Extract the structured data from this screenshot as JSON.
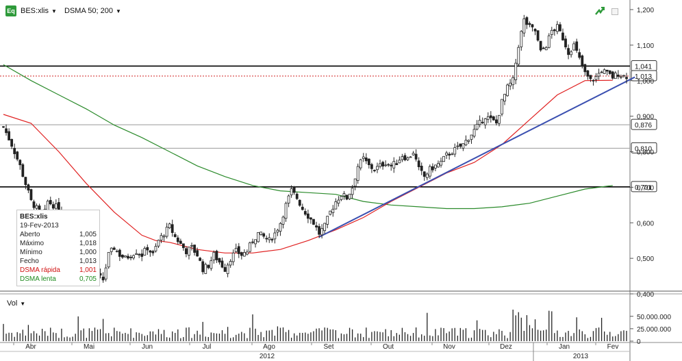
{
  "toolbar": {
    "app_icon_label": "Eq",
    "symbol": "BES:xlis",
    "indicator": "DSMA 50; 200",
    "trend_icon": "trend-arrow-icon",
    "window_icon": "restore-window-icon"
  },
  "volume_panel": {
    "label": "Vol"
  },
  "infobox": {
    "title": "BES:xlis",
    "date": "19-Fev-2013",
    "rows": [
      {
        "label": "Aberto",
        "value": "1,005"
      },
      {
        "label": "Máximo",
        "value": "1,018"
      },
      {
        "label": "Mínimo",
        "value": "1,000"
      },
      {
        "label": "Fecho",
        "value": "1,013"
      },
      {
        "label": "DSMA rápida",
        "value": "1,001"
      },
      {
        "label": "DSMA lenta",
        "value": "0,705"
      }
    ]
  },
  "colors": {
    "up": "#ffffff",
    "down": "#222222",
    "fast_ma": "#e02020",
    "slow_ma": "#2a8a2a",
    "trendline": "#3a4fb0",
    "grid": "#cfcfcf",
    "hline_strong": "#000000",
    "hline_weak": "#999999",
    "ref_dotted": "#d02020"
  },
  "chart_data": {
    "type": "candlestick",
    "price_axis": {
      "min": 0.4,
      "max": 1.2,
      "ticks": [
        "1,200",
        "1,100",
        "1,000",
        "0,900",
        "0,800",
        "0,700",
        "0,600",
        "0,500",
        "0,400"
      ],
      "tick_values": [
        1.2,
        1.1,
        1.0,
        0.9,
        0.8,
        0.7,
        0.6,
        0.5,
        0.4
      ]
    },
    "volume_axis": {
      "min": 0,
      "max": 80000000,
      "ticks": [
        "50.000.000",
        "25.000.000",
        "0"
      ],
      "tick_values": [
        50000000,
        25000000,
        0
      ]
    },
    "months": [
      "Abr",
      "Mai",
      "Jun",
      "Jul",
      "Ago",
      "Set",
      "Out",
      "Nov",
      "Dez",
      "Jan",
      "Fev"
    ],
    "years": [
      "2012",
      "2013"
    ],
    "level_labels": [
      {
        "label": "1,041",
        "value": 1.041,
        "style": "strong"
      },
      {
        "label": "1,013",
        "value": 1.013,
        "style": "dotted"
      },
      {
        "label": "0,876",
        "value": 0.876,
        "style": "weak"
      },
      {
        "label": "0,810",
        "value": 0.81,
        "style": "weak"
      },
      {
        "label": "0,701",
        "value": 0.701,
        "style": "strong"
      }
    ],
    "trendline": {
      "from_day_index": 114,
      "from_value": 0.56,
      "to_day_index": 228,
      "to_value": 1.01
    },
    "close_anchors": [
      [
        0,
        0.87
      ],
      [
        3,
        0.82
      ],
      [
        6,
        0.76
      ],
      [
        8,
        0.71
      ],
      [
        10,
        0.66
      ],
      [
        12,
        0.64
      ],
      [
        14,
        0.6
      ],
      [
        16,
        0.66
      ],
      [
        18,
        0.65
      ],
      [
        20,
        0.64
      ],
      [
        22,
        0.62
      ],
      [
        24,
        0.55
      ],
      [
        26,
        0.5
      ],
      [
        28,
        0.49
      ],
      [
        30,
        0.5
      ],
      [
        32,
        0.48
      ],
      [
        34,
        0.45
      ],
      [
        36,
        0.44
      ],
      [
        38,
        0.51
      ],
      [
        40,
        0.53
      ],
      [
        42,
        0.51
      ],
      [
        44,
        0.5
      ],
      [
        46,
        0.51
      ],
      [
        48,
        0.52
      ],
      [
        50,
        0.51
      ],
      [
        52,
        0.53
      ],
      [
        54,
        0.51
      ],
      [
        56,
        0.55
      ],
      [
        58,
        0.57
      ],
      [
        60,
        0.59
      ],
      [
        62,
        0.56
      ],
      [
        64,
        0.54
      ],
      [
        66,
        0.52
      ],
      [
        68,
        0.53
      ],
      [
        70,
        0.51
      ],
      [
        72,
        0.47
      ],
      [
        74,
        0.48
      ],
      [
        76,
        0.51
      ],
      [
        78,
        0.49
      ],
      [
        80,
        0.47
      ],
      [
        82,
        0.5
      ],
      [
        84,
        0.52
      ],
      [
        86,
        0.51
      ],
      [
        88,
        0.52
      ],
      [
        90,
        0.55
      ],
      [
        92,
        0.57
      ],
      [
        94,
        0.56
      ],
      [
        96,
        0.55
      ],
      [
        98,
        0.57
      ],
      [
        100,
        0.6
      ],
      [
        102,
        0.65
      ],
      [
        104,
        0.69
      ],
      [
        106,
        0.67
      ],
      [
        108,
        0.64
      ],
      [
        110,
        0.62
      ],
      [
        112,
        0.6
      ],
      [
        114,
        0.57
      ],
      [
        116,
        0.59
      ],
      [
        118,
        0.63
      ],
      [
        120,
        0.66
      ],
      [
        122,
        0.68
      ],
      [
        124,
        0.67
      ],
      [
        126,
        0.7
      ],
      [
        128,
        0.76
      ],
      [
        130,
        0.78
      ],
      [
        132,
        0.76
      ],
      [
        134,
        0.75
      ],
      [
        136,
        0.76
      ],
      [
        138,
        0.77
      ],
      [
        140,
        0.76
      ],
      [
        142,
        0.77
      ],
      [
        144,
        0.79
      ],
      [
        146,
        0.78
      ],
      [
        148,
        0.8
      ],
      [
        150,
        0.75
      ],
      [
        152,
        0.73
      ],
      [
        154,
        0.75
      ],
      [
        156,
        0.76
      ],
      [
        158,
        0.77
      ],
      [
        160,
        0.79
      ],
      [
        162,
        0.8
      ],
      [
        164,
        0.81
      ],
      [
        166,
        0.82
      ],
      [
        168,
        0.84
      ],
      [
        170,
        0.86
      ],
      [
        172,
        0.88
      ],
      [
        174,
        0.9
      ],
      [
        176,
        0.89
      ],
      [
        178,
        0.88
      ],
      [
        180,
        0.94
      ],
      [
        182,
        0.98
      ],
      [
        184,
        1.0
      ],
      [
        186,
        1.1
      ],
      [
        188,
        1.17
      ],
      [
        190,
        1.15
      ],
      [
        192,
        1.14
      ],
      [
        194,
        1.08
      ],
      [
        196,
        1.1
      ],
      [
        198,
        1.14
      ],
      [
        200,
        1.15
      ],
      [
        202,
        1.12
      ],
      [
        204,
        1.08
      ],
      [
        206,
        1.1
      ],
      [
        208,
        1.06
      ],
      [
        210,
        1.02
      ],
      [
        212,
        1.0
      ],
      [
        214,
        1.01
      ],
      [
        216,
        1.03
      ],
      [
        218,
        1.02
      ],
      [
        220,
        1.01
      ],
      [
        222,
        1.02
      ],
      [
        224,
        1.013
      ]
    ],
    "fast_ma": [
      [
        0,
        0.905
      ],
      [
        10,
        0.88
      ],
      [
        20,
        0.8
      ],
      [
        30,
        0.71
      ],
      [
        40,
        0.63
      ],
      [
        50,
        0.565
      ],
      [
        55,
        0.55
      ],
      [
        60,
        0.545
      ],
      [
        70,
        0.525
      ],
      [
        80,
        0.515
      ],
      [
        90,
        0.515
      ],
      [
        100,
        0.525
      ],
      [
        110,
        0.55
      ],
      [
        120,
        0.58
      ],
      [
        130,
        0.615
      ],
      [
        140,
        0.66
      ],
      [
        150,
        0.7
      ],
      [
        160,
        0.74
      ],
      [
        170,
        0.77
      ],
      [
        180,
        0.82
      ],
      [
        190,
        0.89
      ],
      [
        200,
        0.96
      ],
      [
        210,
        1.0
      ],
      [
        220,
        1.001
      ]
    ],
    "slow_ma": [
      [
        0,
        1.045
      ],
      [
        10,
        1.0
      ],
      [
        20,
        0.96
      ],
      [
        30,
        0.92
      ],
      [
        40,
        0.875
      ],
      [
        50,
        0.84
      ],
      [
        60,
        0.8
      ],
      [
        70,
        0.76
      ],
      [
        80,
        0.73
      ],
      [
        90,
        0.705
      ],
      [
        100,
        0.69
      ],
      [
        110,
        0.685
      ],
      [
        120,
        0.68
      ],
      [
        130,
        0.66
      ],
      [
        140,
        0.65
      ],
      [
        150,
        0.645
      ],
      [
        160,
        0.64
      ],
      [
        170,
        0.64
      ],
      [
        180,
        0.645
      ],
      [
        190,
        0.655
      ],
      [
        200,
        0.675
      ],
      [
        210,
        0.695
      ],
      [
        220,
        0.705
      ]
    ]
  }
}
